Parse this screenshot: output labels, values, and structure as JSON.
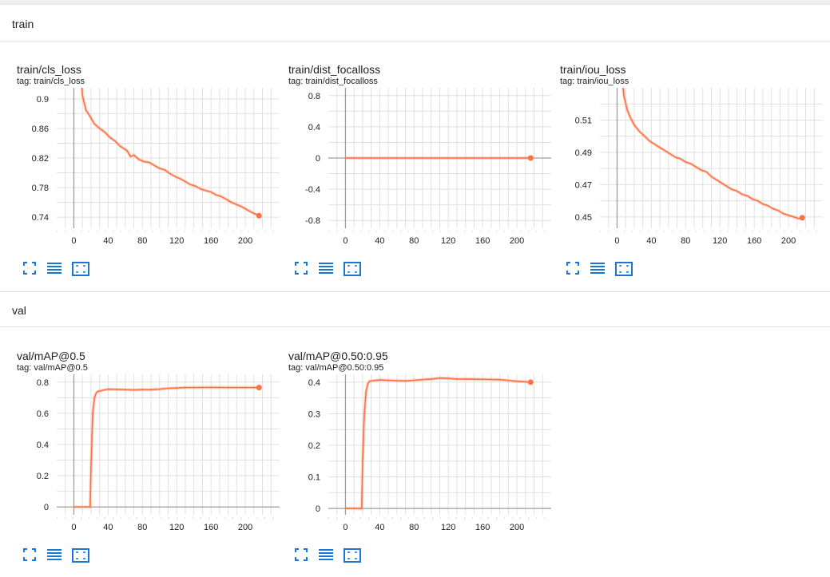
{
  "sections": [
    {
      "label": "train"
    },
    {
      "label": "val"
    }
  ],
  "colors": {
    "series": "#ff7043",
    "tool": "#1976d2",
    "grid": "#e0e0e0",
    "axis": "#9e9e9e"
  },
  "icons": [
    "fullscreen-icon",
    "toggle-log-scale-icon",
    "fit-domain-icon"
  ],
  "chart_data": [
    {
      "type": "line",
      "title": "train/cls_loss",
      "tag": "tag: train/cls_loss",
      "xlim": [
        -20,
        240
      ],
      "ylim": [
        0.725,
        0.915
      ],
      "xticks": [
        0,
        40,
        80,
        120,
        160,
        200
      ],
      "xticklabels": [
        "0",
        "40",
        "80",
        "120",
        "160",
        "200"
      ],
      "yticks": [
        0.74,
        0.78,
        0.82,
        0.86,
        0.9
      ],
      "yticklabels": [
        "0.74",
        "0.78",
        "0.82",
        "0.86",
        "0.9"
      ],
      "series": [
        {
          "x": [
            8,
            10,
            14,
            18,
            24,
            30,
            36,
            42,
            48,
            54,
            58,
            62,
            66,
            70,
            76,
            82,
            88,
            94,
            100,
            106,
            112,
            118,
            124,
            130,
            136,
            142,
            148,
            154,
            160,
            166,
            172,
            178,
            184,
            190,
            196,
            202,
            208,
            212,
            216
          ],
          "y": [
            0.935,
            0.905,
            0.885,
            0.878,
            0.866,
            0.86,
            0.855,
            0.848,
            0.843,
            0.836,
            0.833,
            0.83,
            0.822,
            0.824,
            0.818,
            0.815,
            0.814,
            0.81,
            0.806,
            0.804,
            0.799,
            0.795,
            0.792,
            0.788,
            0.784,
            0.782,
            0.778,
            0.776,
            0.774,
            0.77,
            0.768,
            0.764,
            0.76,
            0.757,
            0.754,
            0.75,
            0.746,
            0.744,
            0.742
          ]
        }
      ]
    },
    {
      "type": "line",
      "title": "train/dist_focalloss",
      "tag": "tag: train/dist_focalloss",
      "xlim": [
        -20,
        240
      ],
      "ylim": [
        -0.9,
        0.9
      ],
      "xticks": [
        0,
        40,
        80,
        120,
        160,
        200
      ],
      "xticklabels": [
        "0",
        "40",
        "80",
        "120",
        "160",
        "200"
      ],
      "yticks": [
        -0.8,
        -0.4,
        0,
        0.4,
        0.8
      ],
      "yticklabels": [
        "-0.8",
        "-0.4",
        "0",
        "0.4",
        "0.8"
      ],
      "series": [
        {
          "x": [
            0,
            216
          ],
          "y": [
            0,
            0
          ]
        }
      ]
    },
    {
      "type": "line",
      "title": "train/iou_loss",
      "tag": "tag: train/iou_loss",
      "xlim": [
        -20,
        240
      ],
      "ylim": [
        0.443,
        0.53
      ],
      "xticks": [
        0,
        40,
        80,
        120,
        160,
        200
      ],
      "xticklabels": [
        "0",
        "40",
        "80",
        "120",
        "160",
        "200"
      ],
      "yticks": [
        0.45,
        0.47,
        0.49,
        0.51
      ],
      "yticklabels": [
        "0.45",
        "0.47",
        "0.49",
        "0.51"
      ],
      "series": [
        {
          "x": [
            6,
            8,
            12,
            16,
            20,
            26,
            32,
            38,
            44,
            50,
            56,
            62,
            68,
            74,
            80,
            86,
            92,
            98,
            104,
            110,
            116,
            122,
            128,
            134,
            140,
            146,
            152,
            158,
            164,
            170,
            176,
            182,
            188,
            194,
            200,
            206,
            212,
            216
          ],
          "y": [
            0.535,
            0.525,
            0.516,
            0.511,
            0.507,
            0.503,
            0.5,
            0.497,
            0.495,
            0.493,
            0.491,
            0.489,
            0.487,
            0.486,
            0.484,
            0.483,
            0.481,
            0.479,
            0.478,
            0.475,
            0.473,
            0.471,
            0.469,
            0.467,
            0.466,
            0.464,
            0.463,
            0.461,
            0.46,
            0.458,
            0.457,
            0.455,
            0.454,
            0.452,
            0.451,
            0.45,
            0.449,
            0.4495
          ]
        }
      ]
    },
    {
      "type": "line",
      "title": "val/mAP@0.5",
      "tag": "tag: val/mAP@0.5",
      "xlim": [
        -20,
        240
      ],
      "ylim": [
        -0.05,
        0.85
      ],
      "xticks": [
        0,
        40,
        80,
        120,
        160,
        200
      ],
      "xticklabels": [
        "0",
        "40",
        "80",
        "120",
        "160",
        "200"
      ],
      "yticks": [
        0,
        0.2,
        0.4,
        0.6,
        0.8
      ],
      "yticklabels": [
        "0",
        "0.2",
        "0.4",
        "0.6",
        "0.8"
      ],
      "series": [
        {
          "x": [
            0,
            19,
            20,
            22,
            24,
            26,
            28,
            32,
            40,
            60,
            70,
            80,
            90,
            100,
            110,
            120,
            130,
            140,
            160,
            180,
            200,
            216
          ],
          "y": [
            0,
            0,
            0.25,
            0.6,
            0.7,
            0.73,
            0.74,
            0.745,
            0.755,
            0.752,
            0.75,
            0.752,
            0.752,
            0.755,
            0.76,
            0.762,
            0.765,
            0.765,
            0.766,
            0.765,
            0.765,
            0.765
          ]
        }
      ]
    },
    {
      "type": "line",
      "title": "val/mAP@0.50:0.95",
      "tag": "tag: val/mAP@0.50:0.95",
      "xlim": [
        -20,
        240
      ],
      "ylim": [
        -0.02,
        0.425
      ],
      "xticks": [
        0,
        40,
        80,
        120,
        160,
        200
      ],
      "xticklabels": [
        "0",
        "40",
        "80",
        "120",
        "160",
        "200"
      ],
      "yticks": [
        0,
        0.1,
        0.2,
        0.3,
        0.4
      ],
      "yticklabels": [
        "0",
        "0.1",
        "0.2",
        "0.3",
        "0.4"
      ],
      "series": [
        {
          "x": [
            0,
            19,
            20,
            22,
            24,
            26,
            28,
            32,
            40,
            60,
            70,
            80,
            90,
            100,
            110,
            120,
            130,
            140,
            160,
            180,
            200,
            216
          ],
          "y": [
            0,
            0,
            0.15,
            0.3,
            0.37,
            0.395,
            0.403,
            0.405,
            0.407,
            0.405,
            0.404,
            0.406,
            0.408,
            0.41,
            0.413,
            0.412,
            0.41,
            0.41,
            0.409,
            0.408,
            0.403,
            0.4
          ]
        }
      ]
    }
  ]
}
